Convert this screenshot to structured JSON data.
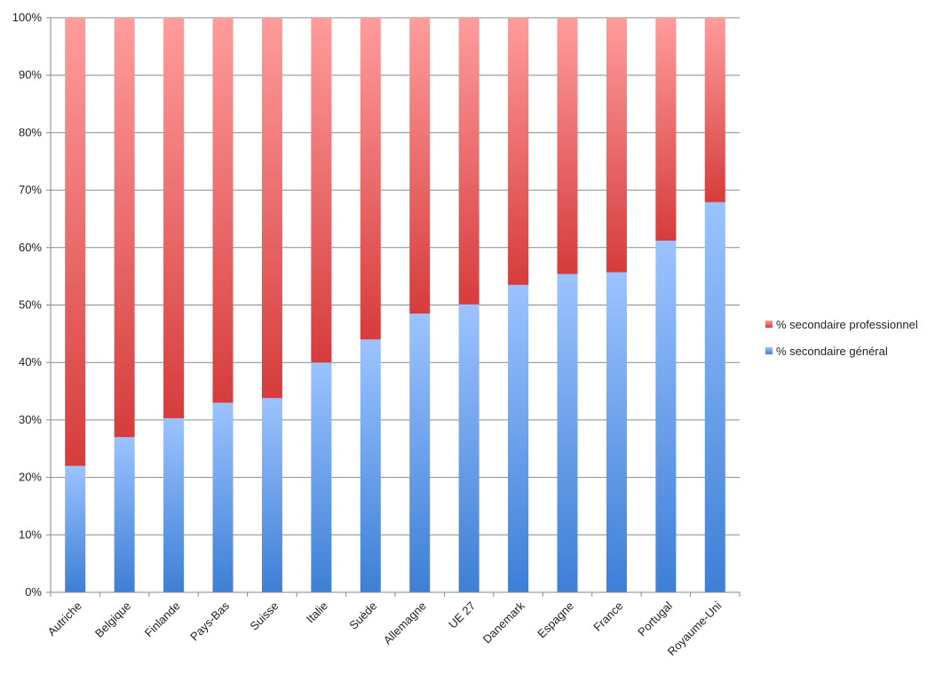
{
  "chart_data": {
    "type": "bar",
    "stacked": true,
    "percent_stacked": true,
    "categories": [
      "Autriche",
      "Belgique",
      "Finlande",
      "Pays-Bas",
      "Suisse",
      "Italie",
      "Suède",
      "Allemagne",
      "UE 27",
      "Danemark",
      "Espagne",
      "France",
      "Portugal",
      "Royaume-Uni"
    ],
    "series": [
      {
        "name": "% secondaire général",
        "values": [
          22,
          27,
          30.3,
          33,
          33.8,
          40,
          44,
          48.5,
          50.1,
          53.5,
          55.4,
          55.7,
          61.2,
          67.9
        ],
        "color_top": "#9cc3ff",
        "color_bottom": "#3d7fd6"
      },
      {
        "name": "% secondaire professionnel",
        "values": [
          78,
          73,
          69.7,
          67,
          66.2,
          60,
          56,
          51.5,
          49.9,
          46.5,
          44.6,
          44.3,
          38.8,
          32.1
        ],
        "color_top": "#ff9c9c",
        "color_bottom": "#d63c3c"
      }
    ],
    "ylim": [
      0,
      100
    ],
    "yticks": [
      "0%",
      "10%",
      "20%",
      "30%",
      "40%",
      "50%",
      "60%",
      "70%",
      "80%",
      "90%",
      "100%"
    ],
    "grid": true,
    "legend_position": "right",
    "title": "",
    "xlabel": "",
    "ylabel": ""
  }
}
